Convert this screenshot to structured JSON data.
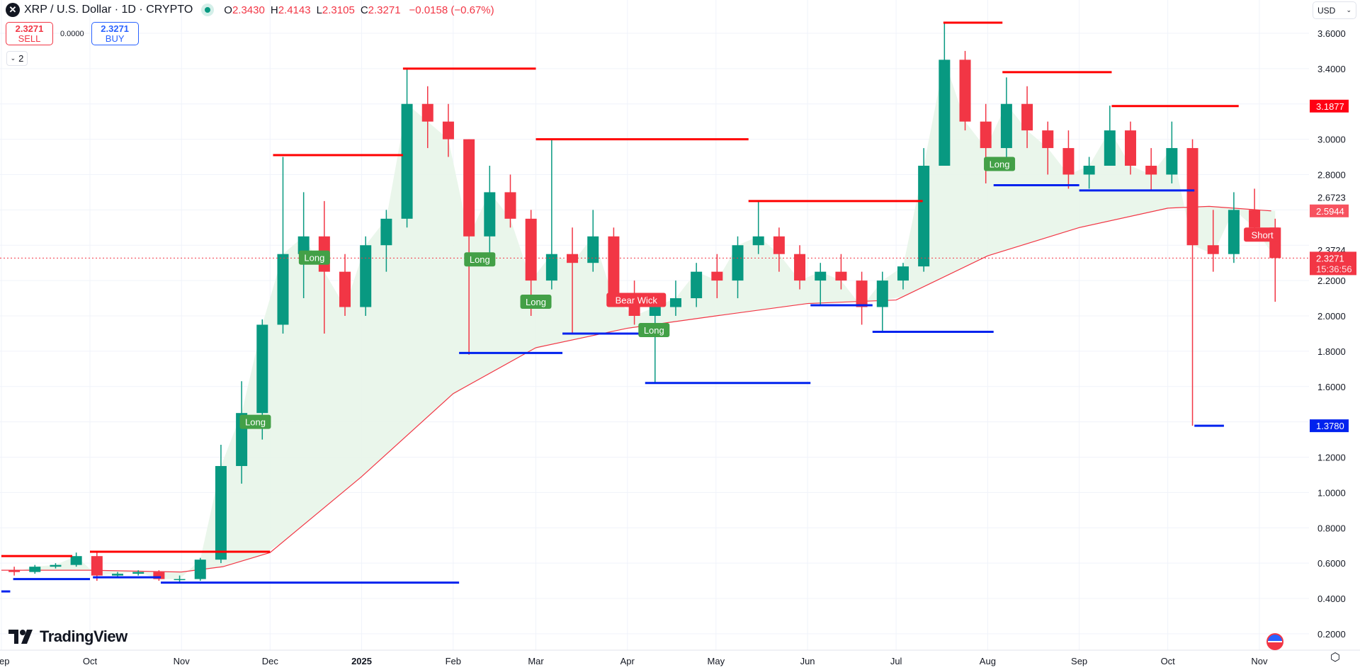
{
  "header": {
    "symbol_icon": "xrp-logo-icon",
    "title": "XRP / U.S. Dollar · 1D · CRYPTO",
    "market_status": "open",
    "o_label": "O",
    "o": "2.3430",
    "h_label": "H",
    "h": "2.4143",
    "l_label": "L",
    "l": "2.3105",
    "c_label": "C",
    "c": "2.3271",
    "change": "−0.0158 (−0.67%)"
  },
  "trade": {
    "sell_price": "2.3271",
    "sell_label": "SELL",
    "spread": "0.0000",
    "buy_price": "2.3271",
    "buy_label": "BUY"
  },
  "indicators_toggle": {
    "count": "2"
  },
  "currency": "USD",
  "brand": "TradingView",
  "colors": {
    "up": "#089981",
    "down": "#f23645",
    "resistance": "#ff0000",
    "support": "#0022ee",
    "ma": "#f23645",
    "fill_above": "#e8f5e9",
    "fill_below": "#fde6e8"
  },
  "chart_data": {
    "type": "candlestick",
    "timeframe": "1D",
    "ylim": [
      0.1,
      3.75
    ],
    "y_ticks": [
      "0.2000",
      "0.4000",
      "0.6000",
      "0.8000",
      "1.0000",
      "1.2000",
      "1.6000",
      "1.8000",
      "2.0000",
      "2.2000",
      "2.8000",
      "3.0000",
      "3.4000",
      "3.6000"
    ],
    "x_ticks": [
      {
        "date": "2024-09-01",
        "label": "Sep"
      },
      {
        "date": "2024-10-01",
        "label": "Oct"
      },
      {
        "date": "2024-11-01",
        "label": "Nov"
      },
      {
        "date": "2024-12-01",
        "label": "Dec"
      },
      {
        "date": "2025-01-01",
        "label": "2025"
      },
      {
        "date": "2025-02-01",
        "label": "Feb"
      },
      {
        "date": "2025-03-01",
        "label": "Mar"
      },
      {
        "date": "2025-04-01",
        "label": "Apr"
      },
      {
        "date": "2025-05-01",
        "label": "May"
      },
      {
        "date": "2025-06-01",
        "label": "Jun"
      },
      {
        "date": "2025-07-01",
        "label": "Jul"
      },
      {
        "date": "2025-08-01",
        "label": "Aug"
      },
      {
        "date": "2025-09-01",
        "label": "Sep"
      },
      {
        "date": "2025-10-01",
        "label": "Oct"
      },
      {
        "date": "2025-11-01",
        "label": "Nov"
      }
    ],
    "candles": [
      [
        "2024-09-02",
        0.56,
        0.58,
        0.53,
        0.55
      ],
      [
        "2024-09-09",
        0.55,
        0.59,
        0.54,
        0.58
      ],
      [
        "2024-09-16",
        0.58,
        0.6,
        0.57,
        0.59
      ],
      [
        "2024-09-23",
        0.59,
        0.66,
        0.58,
        0.64
      ],
      [
        "2024-09-30",
        0.64,
        0.66,
        0.5,
        0.53
      ],
      [
        "2024-10-07",
        0.53,
        0.55,
        0.52,
        0.54
      ],
      [
        "2024-10-14",
        0.54,
        0.56,
        0.53,
        0.55
      ],
      [
        "2024-10-21",
        0.55,
        0.56,
        0.5,
        0.51
      ],
      [
        "2024-10-28",
        0.51,
        0.53,
        0.49,
        0.51
      ],
      [
        "2024-11-04",
        0.51,
        0.63,
        0.5,
        0.62
      ],
      [
        "2024-11-11",
        0.62,
        1.27,
        0.6,
        1.15
      ],
      [
        "2024-11-18",
        1.15,
        1.63,
        1.05,
        1.45
      ],
      [
        "2024-11-25",
        1.45,
        1.98,
        1.3,
        1.95
      ],
      [
        "2024-12-02",
        1.95,
        2.9,
        1.9,
        2.35
      ],
      [
        "2024-12-09",
        2.35,
        2.7,
        2.1,
        2.45
      ],
      [
        "2024-12-16",
        2.45,
        2.65,
        1.9,
        2.25
      ],
      [
        "2024-12-23",
        2.25,
        2.35,
        2.0,
        2.05
      ],
      [
        "2024-12-30",
        2.05,
        2.45,
        2.0,
        2.4
      ],
      [
        "2025-01-06",
        2.4,
        2.6,
        2.25,
        2.55
      ],
      [
        "2025-01-13",
        2.55,
        3.4,
        2.5,
        3.2
      ],
      [
        "2025-01-20",
        3.2,
        3.3,
        2.95,
        3.1
      ],
      [
        "2025-01-27",
        3.1,
        3.2,
        2.9,
        3.0
      ],
      [
        "2025-02-03",
        3.0,
        3.0,
        1.78,
        2.45
      ],
      [
        "2025-02-10",
        2.45,
        2.85,
        2.35,
        2.7
      ],
      [
        "2025-02-17",
        2.7,
        2.8,
        2.5,
        2.55
      ],
      [
        "2025-02-24",
        2.55,
        2.6,
        2.0,
        2.2
      ],
      [
        "2025-03-03",
        2.2,
        3.0,
        2.15,
        2.35
      ],
      [
        "2025-03-10",
        2.35,
        2.5,
        1.9,
        2.3
      ],
      [
        "2025-03-17",
        2.3,
        2.6,
        2.25,
        2.45
      ],
      [
        "2025-03-24",
        2.45,
        2.5,
        2.05,
        2.1
      ],
      [
        "2025-03-31",
        2.1,
        2.2,
        1.95,
        2.0
      ],
      [
        "2025-04-07",
        2.0,
        2.1,
        1.62,
        2.05
      ],
      [
        "2025-04-14",
        2.05,
        2.2,
        2.0,
        2.1
      ],
      [
        "2025-04-21",
        2.1,
        2.3,
        2.05,
        2.25
      ],
      [
        "2025-04-28",
        2.25,
        2.35,
        2.1,
        2.2
      ],
      [
        "2025-05-05",
        2.2,
        2.45,
        2.1,
        2.4
      ],
      [
        "2025-05-12",
        2.4,
        2.65,
        2.35,
        2.45
      ],
      [
        "2025-05-19",
        2.45,
        2.5,
        2.25,
        2.35
      ],
      [
        "2025-05-26",
        2.35,
        2.4,
        2.15,
        2.2
      ],
      [
        "2025-06-02",
        2.2,
        2.3,
        2.06,
        2.25
      ],
      [
        "2025-06-09",
        2.25,
        2.35,
        2.15,
        2.2
      ],
      [
        "2025-06-16",
        2.2,
        2.25,
        1.95,
        2.05
      ],
      [
        "2025-06-23",
        2.05,
        2.25,
        1.91,
        2.2
      ],
      [
        "2025-06-30",
        2.2,
        2.3,
        2.15,
        2.28
      ],
      [
        "2025-07-07",
        2.28,
        2.95,
        2.25,
        2.85
      ],
      [
        "2025-07-14",
        2.85,
        3.66,
        2.85,
        3.45
      ],
      [
        "2025-07-21",
        3.45,
        3.5,
        3.05,
        3.1
      ],
      [
        "2025-07-28",
        3.1,
        3.2,
        2.75,
        2.95
      ],
      [
        "2025-08-04",
        2.95,
        3.35,
        2.85,
        3.2
      ],
      [
        "2025-08-11",
        3.2,
        3.3,
        2.95,
        3.05
      ],
      [
        "2025-08-18",
        3.05,
        3.1,
        2.8,
        2.95
      ],
      [
        "2025-08-25",
        2.95,
        3.05,
        2.72,
        2.8
      ],
      [
        "2025-09-01",
        2.8,
        2.9,
        2.72,
        2.85
      ],
      [
        "2025-09-08",
        2.85,
        3.19,
        2.85,
        3.05
      ],
      [
        "2025-09-15",
        3.05,
        3.1,
        2.8,
        2.85
      ],
      [
        "2025-09-22",
        2.85,
        2.95,
        2.71,
        2.8
      ],
      [
        "2025-09-29",
        2.8,
        3.1,
        2.75,
        2.95
      ],
      [
        "2025-10-06",
        2.95,
        3.0,
        1.378,
        2.4
      ],
      [
        "2025-10-13",
        2.4,
        2.6,
        2.25,
        2.35
      ],
      [
        "2025-10-20",
        2.35,
        2.7,
        2.3,
        2.6
      ],
      [
        "2025-10-27",
        2.6,
        2.72,
        2.45,
        2.5
      ],
      [
        "2025-11-03",
        2.5,
        2.55,
        2.08,
        2.3271
      ]
    ],
    "moving_average": [
      [
        "2024-09-01",
        0.56
      ],
      [
        "2024-10-01",
        0.56
      ],
      [
        "2024-11-01",
        0.55
      ],
      [
        "2024-11-15",
        0.58
      ],
      [
        "2024-12-01",
        0.66
      ],
      [
        "2025-01-01",
        1.09
      ],
      [
        "2025-02-01",
        1.56
      ],
      [
        "2025-03-01",
        1.82
      ],
      [
        "2025-04-01",
        1.93
      ],
      [
        "2025-05-01",
        2.0
      ],
      [
        "2025-06-01",
        2.07
      ],
      [
        "2025-07-01",
        2.09
      ],
      [
        "2025-08-01",
        2.34
      ],
      [
        "2025-09-01",
        2.5
      ],
      [
        "2025-10-01",
        2.61
      ],
      [
        "2025-10-15",
        2.62
      ],
      [
        "2025-11-05",
        2.5944
      ]
    ],
    "resistance_lines": [
      [
        "2024-09-01",
        "2024-09-25",
        0.64
      ],
      [
        "2024-10-01",
        "2024-12-01",
        0.665
      ],
      [
        "2024-12-02",
        "2025-01-15",
        2.91
      ],
      [
        "2025-01-15",
        "2025-03-01",
        3.4
      ],
      [
        "2025-03-01",
        "2025-05-12",
        3.0
      ],
      [
        "2025-05-12",
        "2025-07-10",
        2.65
      ],
      [
        "2025-07-17",
        "2025-08-06",
        3.66
      ],
      [
        "2025-08-06",
        "2025-09-12",
        3.38
      ],
      [
        "2025-09-12",
        "2025-10-25",
        3.1877
      ]
    ],
    "support_lines": [
      [
        "2024-09-01",
        "2024-09-04",
        0.44
      ],
      [
        "2024-09-05",
        "2024-10-01",
        0.51
      ],
      [
        "2024-10-02",
        "2024-10-25",
        0.52
      ],
      [
        "2024-10-25",
        "2025-02-03",
        0.49
      ],
      [
        "2025-02-03",
        "2025-03-10",
        1.79
      ],
      [
        "2025-03-10",
        "2025-04-07",
        1.9
      ],
      [
        "2025-04-07",
        "2025-06-02",
        1.62
      ],
      [
        "2025-06-02",
        "2025-06-23",
        2.06
      ],
      [
        "2025-06-23",
        "2025-08-03",
        1.91
      ],
      [
        "2025-08-03",
        "2025-09-01",
        2.74
      ],
      [
        "2025-09-01",
        "2025-10-10",
        2.71
      ],
      [
        "2025-10-10",
        "2025-10-20",
        1.378
      ]
    ],
    "signals": [
      {
        "date": "2024-11-26",
        "price": 1.4,
        "label": "Long",
        "kind": "long"
      },
      {
        "date": "2024-12-16",
        "price": 2.33,
        "label": "Long",
        "kind": "long"
      },
      {
        "date": "2025-02-10",
        "price": 2.32,
        "label": "Long",
        "kind": "long"
      },
      {
        "date": "2025-03-01",
        "price": 2.08,
        "label": "Long",
        "kind": "long"
      },
      {
        "date": "2025-04-10",
        "price": 1.92,
        "label": "Long",
        "kind": "long"
      },
      {
        "date": "2025-04-04",
        "price": 2.09,
        "label": "Bear Wick",
        "kind": "bear"
      },
      {
        "date": "2025-08-05",
        "price": 2.86,
        "label": "Long",
        "kind": "long"
      },
      {
        "date": "2025-11-02",
        "price": 2.46,
        "label": "Short",
        "kind": "short"
      }
    ],
    "price_labels": [
      {
        "price": 3.1877,
        "text": "3.1877",
        "style": "resistance"
      },
      {
        "price": 2.6723,
        "text": "2.6723",
        "style": "plain"
      },
      {
        "price": 2.5944,
        "text": "2.5944",
        "style": "ma"
      },
      {
        "price": 2.3724,
        "text": "2.3724",
        "style": "plain"
      },
      {
        "price": 1.378,
        "text": "1.3780",
        "style": "support"
      }
    ],
    "last_price": {
      "price": 2.3271,
      "text": "2.3271",
      "countdown": "15:36:56"
    }
  }
}
